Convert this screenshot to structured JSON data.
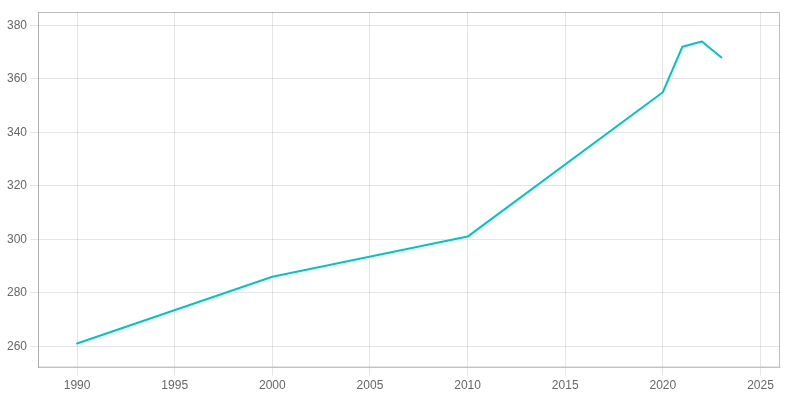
{
  "chart_data": {
    "type": "line",
    "x": [
      1990,
      2000,
      2010,
      2020,
      2021,
      2022,
      2023
    ],
    "values": [
      261,
      286,
      301,
      355,
      372,
      374,
      368
    ],
    "color": "#00C5C5",
    "xlim": [
      1988,
      2026
    ],
    "ylim": [
      252,
      385
    ],
    "xticks": [
      1990,
      1995,
      2000,
      2005,
      2010,
      2015,
      2020,
      2025
    ],
    "yticks": [
      260,
      280,
      300,
      320,
      340,
      360,
      380
    ],
    "grid": true
  }
}
